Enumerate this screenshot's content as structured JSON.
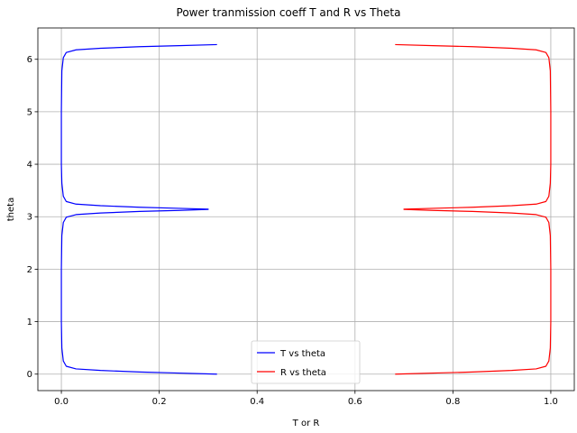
{
  "chart_data": {
    "type": "line",
    "title": "Power tranmission coeff T and R vs Theta",
    "xlabel": "T or R",
    "ylabel": "theta",
    "xlim": [
      -0.048,
      1.048
    ],
    "ylim": [
      -0.314,
      6.597
    ],
    "xticks": [
      0.0,
      0.2,
      0.4,
      0.6,
      0.8,
      1.0
    ],
    "xtick_labels": [
      "0.0",
      "0.2",
      "0.4",
      "0.6",
      "0.8",
      "1.0"
    ],
    "yticks": [
      0,
      1,
      2,
      3,
      4,
      5,
      6
    ],
    "ytick_labels": [
      "0",
      "1",
      "2",
      "3",
      "4",
      "5",
      "6"
    ],
    "grid": true,
    "legend_position": "lower center",
    "series": [
      {
        "name": "T vs theta",
        "color": "#0000ff",
        "points": [
          [
            0.318,
            0.0
          ],
          [
            0.24,
            0.02
          ],
          [
            0.16,
            0.04
          ],
          [
            0.08,
            0.07
          ],
          [
            0.03,
            0.1
          ],
          [
            0.01,
            0.15
          ],
          [
            0.004,
            0.25
          ],
          [
            0.001,
            0.5
          ],
          [
            0.0,
            1.0
          ],
          [
            0.0,
            2.0
          ],
          [
            0.001,
            2.64
          ],
          [
            0.004,
            2.89
          ],
          [
            0.01,
            2.99
          ],
          [
            0.03,
            3.04
          ],
          [
            0.08,
            3.07
          ],
          [
            0.16,
            3.1
          ],
          [
            0.24,
            3.12
          ],
          [
            0.3,
            3.14
          ],
          [
            0.3,
            3.145
          ],
          [
            0.24,
            3.16
          ],
          [
            0.16,
            3.18
          ],
          [
            0.08,
            3.21
          ],
          [
            0.03,
            3.24
          ],
          [
            0.01,
            3.29
          ],
          [
            0.004,
            3.39
          ],
          [
            0.001,
            3.64
          ],
          [
            0.0,
            4.0
          ],
          [
            0.0,
            5.0
          ],
          [
            0.001,
            5.78
          ],
          [
            0.004,
            6.03
          ],
          [
            0.01,
            6.13
          ],
          [
            0.03,
            6.18
          ],
          [
            0.08,
            6.21
          ],
          [
            0.16,
            6.24
          ],
          [
            0.24,
            6.26
          ],
          [
            0.318,
            6.28
          ]
        ]
      },
      {
        "name": "R vs theta",
        "color": "#ff0000",
        "points": [
          [
            0.682,
            0.0
          ],
          [
            0.76,
            0.02
          ],
          [
            0.84,
            0.04
          ],
          [
            0.92,
            0.07
          ],
          [
            0.97,
            0.1
          ],
          [
            0.99,
            0.15
          ],
          [
            0.996,
            0.25
          ],
          [
            0.999,
            0.5
          ],
          [
            1.0,
            1.0
          ],
          [
            1.0,
            2.0
          ],
          [
            0.999,
            2.64
          ],
          [
            0.996,
            2.89
          ],
          [
            0.99,
            2.99
          ],
          [
            0.97,
            3.04
          ],
          [
            0.92,
            3.07
          ],
          [
            0.84,
            3.1
          ],
          [
            0.76,
            3.12
          ],
          [
            0.7,
            3.14
          ],
          [
            0.7,
            3.145
          ],
          [
            0.76,
            3.16
          ],
          [
            0.84,
            3.18
          ],
          [
            0.92,
            3.21
          ],
          [
            0.97,
            3.24
          ],
          [
            0.99,
            3.29
          ],
          [
            0.996,
            3.39
          ],
          [
            0.999,
            3.64
          ],
          [
            1.0,
            4.0
          ],
          [
            1.0,
            5.0
          ],
          [
            0.999,
            5.78
          ],
          [
            0.996,
            6.03
          ],
          [
            0.99,
            6.13
          ],
          [
            0.97,
            6.18
          ],
          [
            0.92,
            6.21
          ],
          [
            0.84,
            6.24
          ],
          [
            0.76,
            6.26
          ],
          [
            0.682,
            6.28
          ]
        ]
      }
    ]
  }
}
